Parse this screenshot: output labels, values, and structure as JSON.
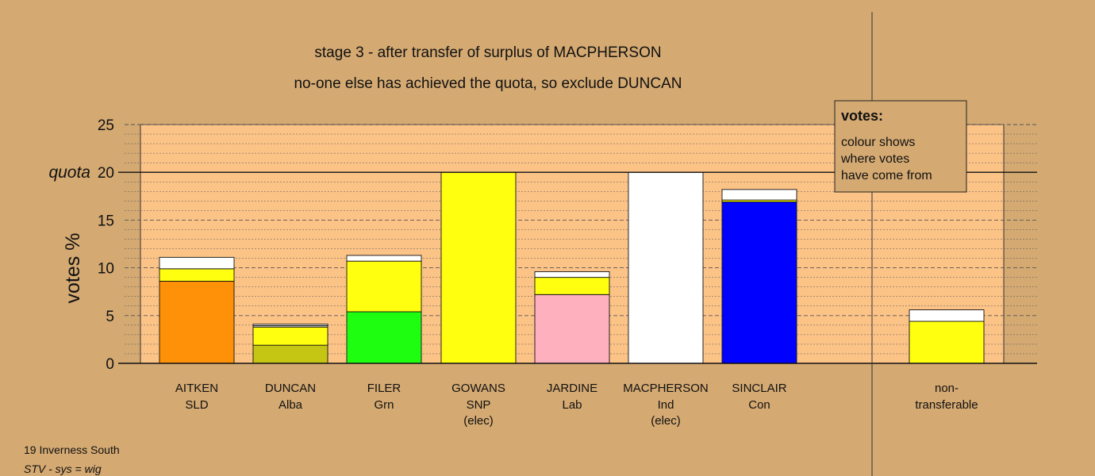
{
  "colors": {
    "background": "#d4a972",
    "plot_area": "#fcc387",
    "legend_box": "#d4a972",
    "SLD": "#ff9109",
    "Alba": "#c5c514",
    "Grn": "#1efe10",
    "SNP": "#ffff0f",
    "Lab": "#ffb0bf",
    "Ind": "#ffffff",
    "Con": "#0000fe",
    "gray_residual": "#dcdcdc"
  },
  "chart_data": {
    "type": "bar",
    "stacked": true,
    "title": "stage 3 - after transfer of surplus of MACPHERSON",
    "subtitle": "no-one else has achieved the quota, so exclude DUNCAN",
    "ylabel": "votes %",
    "ylim": [
      0,
      25
    ],
    "yticks": [
      0,
      5,
      10,
      15,
      20,
      25
    ],
    "ytick_labels": [
      "0",
      "5",
      "10",
      "15",
      "quota 20",
      "25"
    ],
    "quota": 20,
    "quota_label": "quota",
    "grid": true,
    "categories": [
      {
        "name": "AITKEN",
        "party": "SLD",
        "note": ""
      },
      {
        "name": "DUNCAN",
        "party": "Alba",
        "note": ""
      },
      {
        "name": "FILER",
        "party": "Grn",
        "note": ""
      },
      {
        "name": "GOWANS",
        "party": "SNP",
        "note": "(elec)"
      },
      {
        "name": "JARDINE",
        "party": "Lab",
        "note": ""
      },
      {
        "name": "MACPHERSON",
        "party": "Ind",
        "note": "(elec)"
      },
      {
        "name": "SINCLAIR",
        "party": "Con",
        "note": ""
      },
      {
        "name": "non-",
        "party": "transferable",
        "note": ""
      }
    ],
    "bars": [
      {
        "segments": [
          {
            "source": "SLD",
            "value": 8.6
          },
          {
            "source": "SNP",
            "value": 1.3
          },
          {
            "source": "Ind",
            "value": 1.2
          }
        ]
      },
      {
        "segments": [
          {
            "source": "Alba",
            "value": 1.9
          },
          {
            "source": "SNP",
            "value": 1.9
          },
          {
            "source": "gray_residual",
            "value": 0.15
          },
          {
            "source": "Ind",
            "value": 0.15
          }
        ]
      },
      {
        "segments": [
          {
            "source": "Grn",
            "value": 5.4
          },
          {
            "source": "SNP",
            "value": 5.3
          },
          {
            "source": "Ind",
            "value": 0.6
          }
        ]
      },
      {
        "segments": [
          {
            "source": "SNP",
            "value": 20.0
          }
        ]
      },
      {
        "segments": [
          {
            "source": "Lab",
            "value": 7.2
          },
          {
            "source": "SNP",
            "value": 1.8
          },
          {
            "source": "Ind",
            "value": 0.6
          }
        ]
      },
      {
        "segments": [
          {
            "source": "Ind",
            "value": 20.0
          }
        ]
      },
      {
        "segments": [
          {
            "source": "Con",
            "value": 16.9
          },
          {
            "source": "SNP",
            "value": 0.2
          },
          {
            "source": "Ind",
            "value": 1.1
          }
        ]
      },
      {
        "segments": [
          {
            "source": "SNP",
            "value": 4.4
          },
          {
            "source": "Ind",
            "value": 1.2
          }
        ]
      }
    ],
    "legend": {
      "heading": "votes:",
      "lines": [
        "colour shows",
        "where votes",
        "have come from"
      ],
      "placement": "top-right"
    }
  },
  "footer": {
    "constituency": "19 Inverness South",
    "system": "STV - sys = wig"
  }
}
